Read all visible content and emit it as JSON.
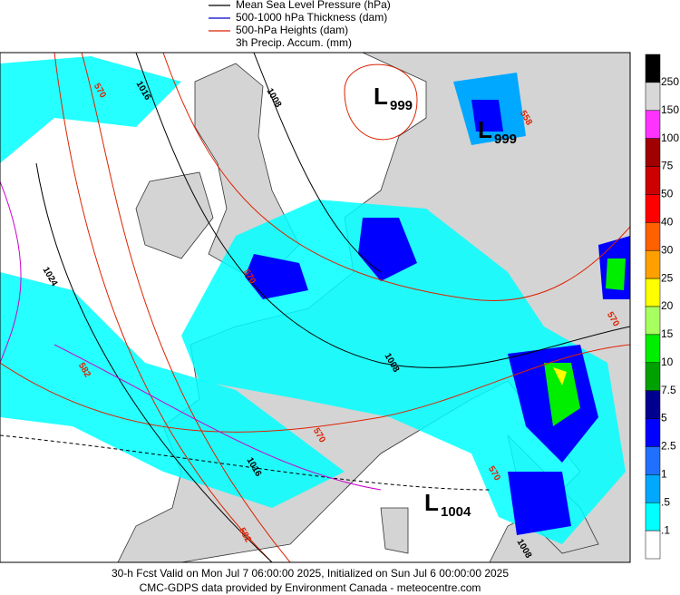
{
  "legend": [
    {
      "label": "Mean Sea Level Pressure (hPa)",
      "color": "#000000"
    },
    {
      "label": "500-1000 hPa Thickness (dam)",
      "color": "#0000cc"
    },
    {
      "label": "500-hPa Heights (dam)",
      "color": "#dd2200"
    },
    {
      "label": "3h Precip. Accum. (mm)",
      "color": null
    }
  ],
  "colorbar": {
    "labels": [
      "250",
      "150",
      "100",
      "75",
      "50",
      "40",
      "30",
      "25",
      "20",
      "15",
      "10",
      "7.5",
      "5",
      "2.5",
      "1",
      ".5",
      ".1"
    ],
    "colors": [
      "#000000",
      "#d8d8d8",
      "#ff33ff",
      "#a00000",
      "#cc0000",
      "#ff0000",
      "#ff6000",
      "#ffa000",
      "#ffff00",
      "#a8ff60",
      "#00ee00",
      "#00a000",
      "#000090",
      "#0000ff",
      "#2070ff",
      "#00a8ff",
      "#00ffff",
      "#ffffff"
    ]
  },
  "pressure_centers": [
    {
      "letter": "L",
      "value": "999"
    },
    {
      "letter": "L",
      "value": "999"
    },
    {
      "letter": "L",
      "value": "1004"
    }
  ],
  "contour_labels": [
    "570",
    "1016",
    "1008",
    "1024",
    "582",
    "570",
    "570",
    "582",
    "1016",
    "1008",
    "1008",
    "570",
    "570",
    "558"
  ],
  "footer": [
    "30-h Fcst Valid on Mon Jul  7 06:00:00 2025, Initialized on Sun Jul  6 00:00:00 2025",
    "CMC-GDPS data provided by Environment Canada - meteocentre.com"
  ]
}
